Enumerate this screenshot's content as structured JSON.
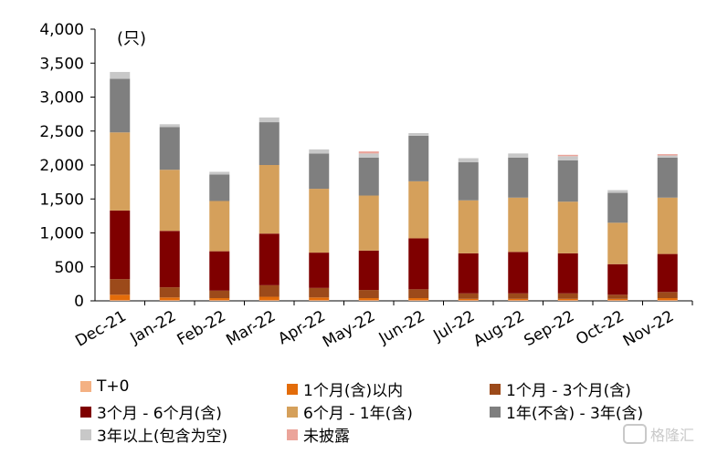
{
  "chart_data": {
    "type": "bar",
    "stacked": true,
    "unit_label": "(只)",
    "categories": [
      "Dec-21",
      "Jan-22",
      "Feb-22",
      "Mar-22",
      "Apr-22",
      "May-22",
      "Jun-22",
      "Jul-22",
      "Aug-22",
      "Sep-22",
      "Oct-22",
      "Nov-22"
    ],
    "ylim": [
      0,
      4000
    ],
    "yticks": [
      "0",
      "500",
      "1,000",
      "1,500",
      "2,000",
      "2,500",
      "3,000",
      "3,500",
      "4,000"
    ],
    "ytick_values": [
      0,
      500,
      1000,
      1500,
      2000,
      2500,
      3000,
      3500,
      4000
    ],
    "grid": false,
    "legend_position": "bottom",
    "series": [
      {
        "name": "T+0",
        "color": "#F4B183",
        "values": [
          10,
          10,
          10,
          10,
          10,
          10,
          10,
          10,
          10,
          10,
          10,
          10
        ]
      },
      {
        "name": "1个月(含)以内",
        "color": "#E36C0A",
        "values": [
          80,
          40,
          30,
          50,
          40,
          30,
          30,
          20,
          20,
          20,
          20,
          30
        ]
      },
      {
        "name": "1个月 - 3个月(含)",
        "color": "#9C4A1A",
        "values": [
          230,
          150,
          110,
          170,
          140,
          120,
          130,
          80,
          80,
          80,
          60,
          90
        ]
      },
      {
        "name": "3个月 - 6个月(含)",
        "color": "#7F0000",
        "values": [
          1010,
          830,
          580,
          760,
          520,
          580,
          750,
          590,
          610,
          590,
          450,
          560
        ]
      },
      {
        "name": "6个月 - 1年(含)",
        "color": "#D5A05B",
        "values": [
          1150,
          900,
          740,
          1010,
          940,
          810,
          840,
          780,
          800,
          760,
          610,
          830
        ]
      },
      {
        "name": "1年(不含) - 3年(含)",
        "color": "#7F7F7F",
        "values": [
          790,
          630,
          390,
          630,
          520,
          560,
          670,
          560,
          590,
          610,
          440,
          590
        ]
      },
      {
        "name": "3年以上(包含为空)",
        "color": "#C8C8C8",
        "values": [
          100,
          40,
          40,
          70,
          60,
          60,
          40,
          60,
          60,
          60,
          40,
          30
        ]
      },
      {
        "name": "未披露",
        "color": "#EBA49A",
        "values": [
          0,
          0,
          0,
          0,
          0,
          30,
          0,
          0,
          0,
          20,
          0,
          20
        ]
      }
    ]
  },
  "watermark": "格隆汇"
}
